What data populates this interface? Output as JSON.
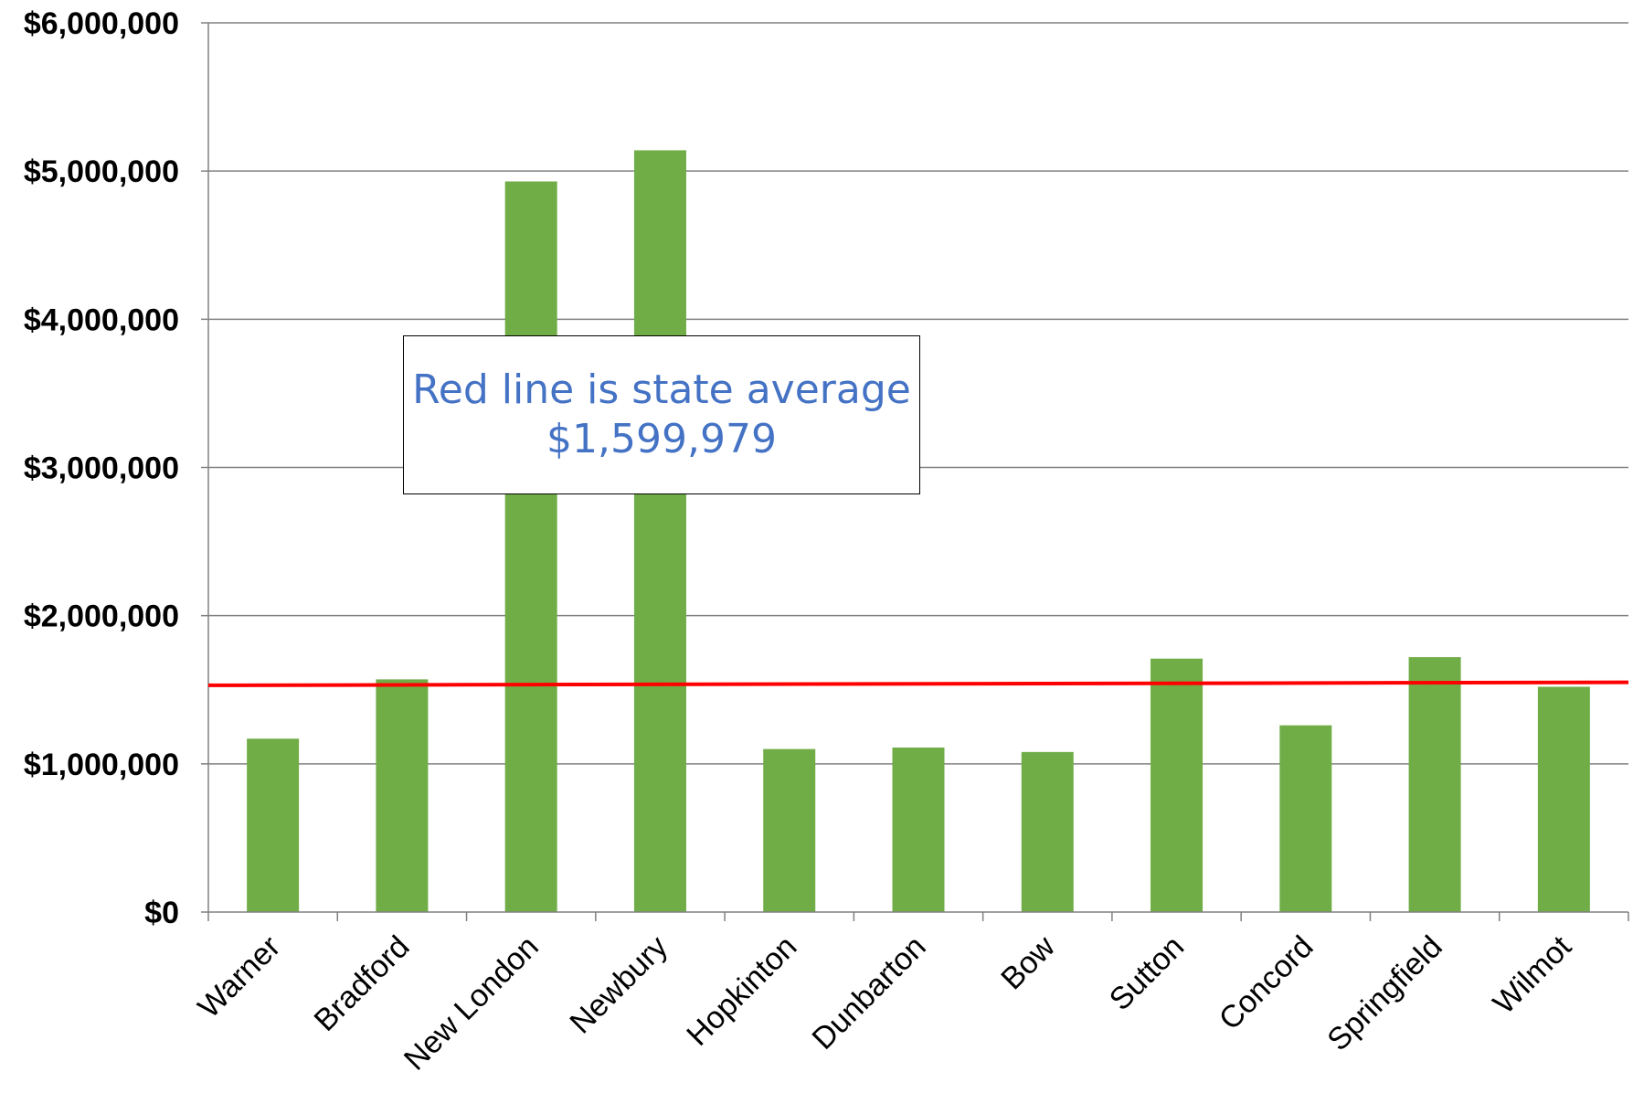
{
  "chart_data": {
    "type": "bar",
    "categories": [
      "Warner",
      "Bradford",
      "New London",
      "Newbury",
      "Hopkinton",
      "Dunbarton",
      "Bow",
      "Sutton",
      "Concord",
      "Springfield",
      "Wilmot"
    ],
    "values": [
      1170000,
      1570000,
      4930000,
      5140000,
      1100000,
      1110000,
      1080000,
      1710000,
      1260000,
      1720000,
      1520000
    ],
    "ylim": [
      0,
      6000000
    ],
    "yticks": [
      0,
      1000000,
      2000000,
      3000000,
      4000000,
      5000000,
      6000000
    ],
    "ytick_labels": [
      "$0",
      "$1,000,000",
      "$2,000,000",
      "$3,000,000",
      "$4,000,000",
      "$5,000,000",
      "$6,000,000"
    ],
    "title": "",
    "xlabel": "",
    "ylabel": "",
    "grid": true,
    "reference_line": {
      "value_start": 1530000,
      "value_end": 1550000
    },
    "annotation": {
      "line1": "Red line is state average",
      "line2": "$1,599,979"
    },
    "colors": {
      "bar": "#70AD47",
      "reference_line": "#FF0000",
      "annotation_text": "#4472C4",
      "grid": "#808080"
    }
  }
}
